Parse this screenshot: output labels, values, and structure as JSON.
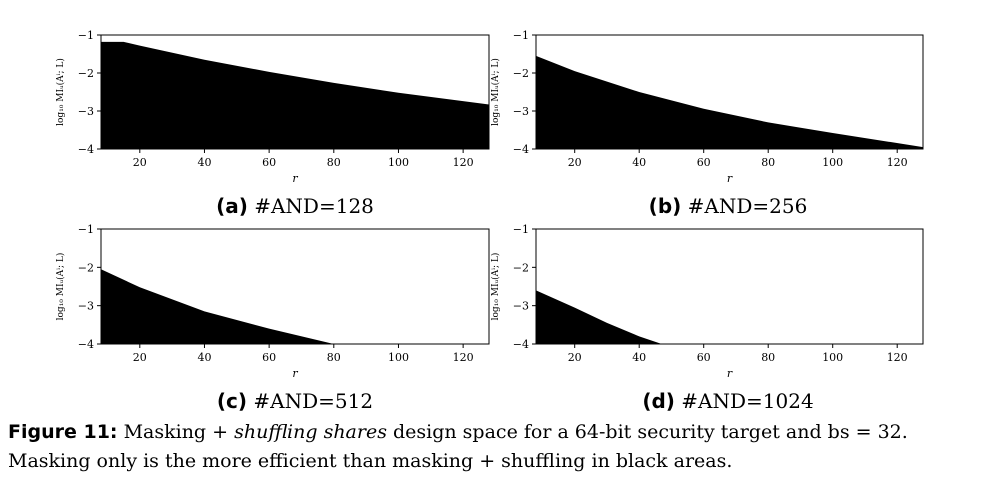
{
  "charts_meta": {
    "ylabel": "log₁₀ MIᵤ(Aⁱ; L)",
    "xlabel": "r",
    "xticks": [
      20,
      40,
      60,
      80,
      100,
      120
    ],
    "yticks": [
      -1,
      -2,
      -3,
      -4
    ],
    "ytick_labels": [
      "−1",
      "−2",
      "−3",
      "−4"
    ]
  },
  "chart_data": [
    {
      "type": "area",
      "tag": "(a)",
      "title": "#AND=128",
      "xlabel": "r",
      "ylabel": "log₁₀ MIᵤ(Aⁱ; L)",
      "xlim": [
        8,
        128
      ],
      "ylim": [
        -4,
        -1
      ],
      "fill_color": "#000000",
      "x": [
        8,
        15,
        20,
        40,
        60,
        80,
        100,
        128
      ],
      "y": [
        -1.18,
        -1.18,
        -1.28,
        -1.65,
        -1.97,
        -2.26,
        -2.52,
        -2.83
      ]
    },
    {
      "type": "area",
      "tag": "(b)",
      "title": "#AND=256",
      "xlabel": "r",
      "ylabel": "log₁₀ MIᵤ(Aⁱ; L)",
      "xlim": [
        8,
        128
      ],
      "ylim": [
        -4,
        -1
      ],
      "fill_color": "#000000",
      "x": [
        8,
        20,
        40,
        60,
        80,
        100,
        128
      ],
      "y": [
        -1.55,
        -1.95,
        -2.5,
        -2.94,
        -3.3,
        -3.58,
        -3.95
      ]
    },
    {
      "type": "area",
      "tag": "(c)",
      "title": "#AND=512",
      "xlabel": "r",
      "ylabel": "log₁₀ MIᵤ(Aⁱ; L)",
      "xlim": [
        8,
        128
      ],
      "ylim": [
        -4,
        -1
      ],
      "fill_color": "#000000",
      "x": [
        8,
        20,
        40,
        60,
        80
      ],
      "y": [
        -2.05,
        -2.52,
        -3.15,
        -3.6,
        -4.0
      ]
    },
    {
      "type": "area",
      "tag": "(d)",
      "title": "#AND=1024",
      "xlabel": "r",
      "ylabel": "log₁₀ MIᵤ(Aⁱ; L)",
      "xlim": [
        8,
        128
      ],
      "ylim": [
        -4,
        -1
      ],
      "fill_color": "#000000",
      "x": [
        8,
        20,
        30,
        40,
        47
      ],
      "y": [
        -2.6,
        -3.05,
        -3.45,
        -3.8,
        -4.0
      ]
    }
  ],
  "caption": {
    "label": "Figure 11:",
    "part1": " Masking + ",
    "italic": "shuffling shares",
    "part2": " design space for a 64-bit security target and bs = 32.",
    "line2": "Masking only is the more efficient than masking + shuffling in black areas."
  }
}
